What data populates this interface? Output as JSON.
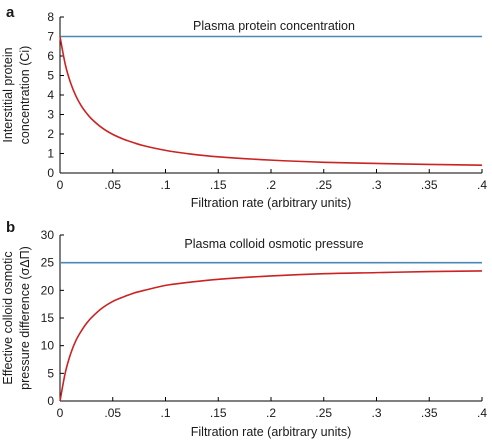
{
  "chart_data": [
    {
      "panel_label": "a",
      "type": "line",
      "xlabel": "Filtration rate (arbitrary units)",
      "ylabel_lines": [
        "Interstitial protein",
        "concentration (Ci)"
      ],
      "xlim": [
        0,
        0.4
      ],
      "ylim": [
        0,
        8
      ],
      "xticks": [
        0,
        0.05,
        0.1,
        0.15,
        0.2,
        0.25,
        0.3,
        0.35,
        0.4
      ],
      "yticks": [
        0,
        1,
        2,
        3,
        4,
        5,
        6,
        7,
        8
      ],
      "grid": false,
      "reference_line": {
        "label": "Plasma protein concentration",
        "y": 7,
        "color": "#4a88b5"
      },
      "series": [
        {
          "color": "#cc2222",
          "x": [
            0,
            0.005,
            0.01,
            0.015,
            0.02,
            0.025,
            0.03,
            0.04,
            0.05,
            0.06,
            0.07,
            0.08,
            0.1,
            0.12,
            0.15,
            0.2,
            0.25,
            0.3,
            0.35,
            0.4
          ],
          "y": [
            7,
            5.57,
            4.63,
            3.96,
            3.46,
            3.08,
            2.77,
            2.31,
            1.98,
            1.74,
            1.55,
            1.39,
            1.16,
            1.0,
            0.83,
            0.66,
            0.55,
            0.49,
            0.44,
            0.4
          ]
        }
      ]
    },
    {
      "panel_label": "b",
      "type": "line",
      "xlabel": "Filtration rate (arbitrary units)",
      "ylabel_lines": [
        "Effective colloid osmotic",
        "pressure difference (σΔΠ)"
      ],
      "xlim": [
        0,
        0.4
      ],
      "ylim": [
        0,
        30
      ],
      "xticks": [
        0,
        0.05,
        0.1,
        0.15,
        0.2,
        0.25,
        0.3,
        0.35,
        0.4
      ],
      "yticks": [
        0,
        5,
        10,
        15,
        20,
        25,
        30
      ],
      "grid": false,
      "reference_line": {
        "label": "Plasma colloid osmotic pressure",
        "y": 25,
        "color": "#4a88b5"
      },
      "series": [
        {
          "color": "#cc2222",
          "x": [
            0,
            0.005,
            0.01,
            0.015,
            0.02,
            0.025,
            0.03,
            0.04,
            0.05,
            0.06,
            0.07,
            0.08,
            0.1,
            0.12,
            0.15,
            0.2,
            0.25,
            0.3,
            0.35,
            0.4
          ],
          "y": [
            0,
            5.1,
            8.5,
            10.9,
            12.6,
            14.0,
            15.1,
            16.8,
            18.0,
            18.8,
            19.5,
            20.0,
            20.9,
            21.4,
            22.0,
            22.6,
            23.0,
            23.2,
            23.4,
            23.5
          ]
        }
      ]
    }
  ]
}
